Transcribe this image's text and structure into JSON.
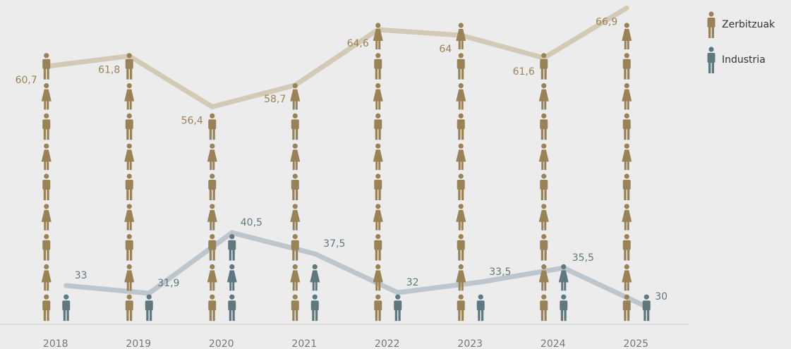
{
  "chart_data": {
    "type": "pictogram",
    "categories": [
      "2018",
      "2019",
      "2020",
      "2021",
      "2022",
      "2023",
      "2024",
      "2025"
    ],
    "series": [
      {
        "name": "Zerbitzuak",
        "color": "#9a8257",
        "line_color": "#d3cab6",
        "values": [
          60.7,
          61.8,
          56.4,
          58.7,
          64.6,
          64,
          61.6,
          66.9
        ],
        "value_labels": [
          "60,7",
          "61,8",
          "56,4",
          "58,7",
          "64,6",
          "64",
          "61,6",
          "66,9"
        ]
      },
      {
        "name": "Industria",
        "color": "#5f7880",
        "line_color": "#bcc6cc",
        "axis": "y2",
        "values": [
          33,
          31.9,
          40.5,
          37.5,
          32,
          33.5,
          35.5,
          30
        ],
        "value_labels": [
          "33",
          "31,9",
          "40,5",
          "37,5",
          "32",
          "33,5",
          "35,5",
          "30"
        ]
      }
    ],
    "ylim": [
      33.3,
      67
    ],
    "y2lim": [
      27.5,
      72.5
    ],
    "legend": "top-right"
  }
}
